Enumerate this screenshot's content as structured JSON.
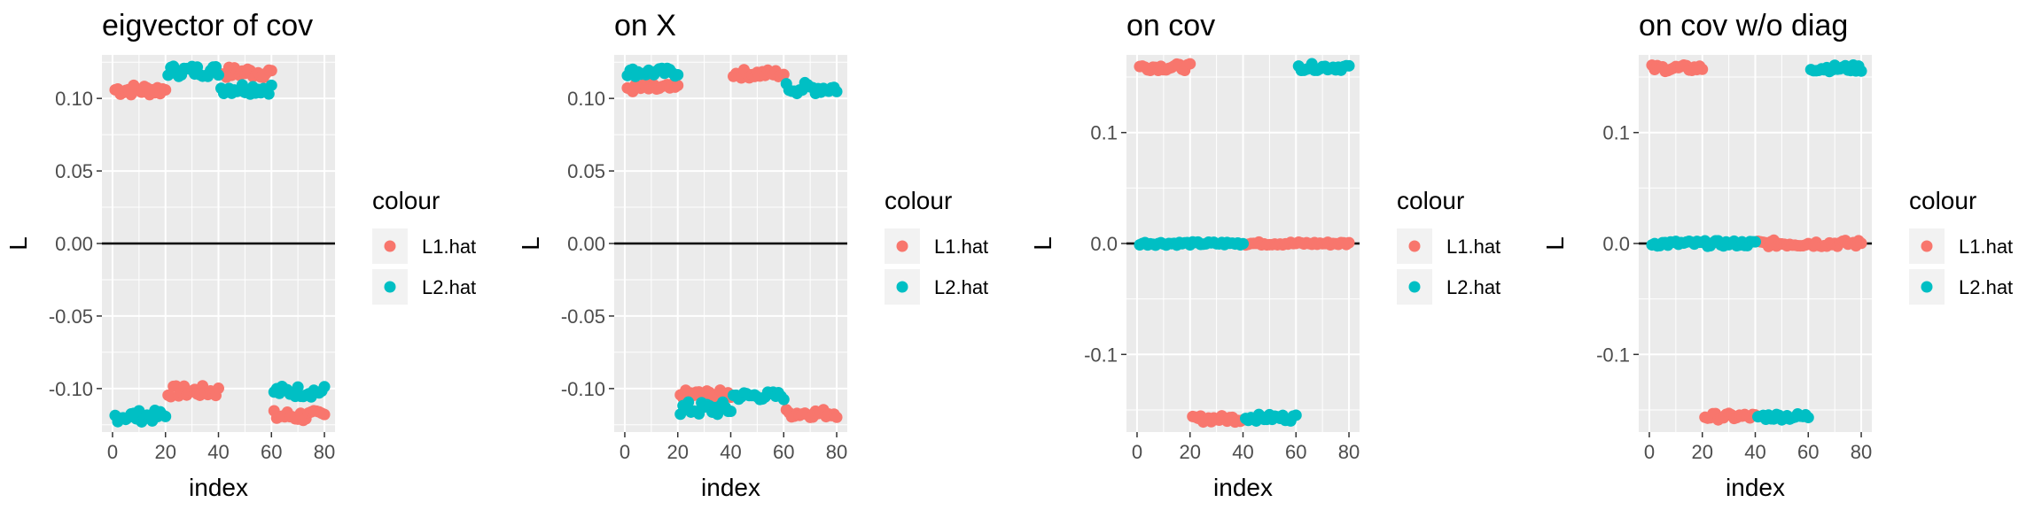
{
  "chart_data": [
    {
      "type": "scatter",
      "title": "eigvector of cov",
      "xlabel": "index",
      "ylabel": "L",
      "xlim": [
        0,
        80
      ],
      "ylim": [
        -0.13,
        0.13
      ],
      "x_ticks": [
        0,
        20,
        40,
        60,
        80
      ],
      "y_ticks": [
        0.1,
        0.05,
        0.0,
        -0.05,
        -0.1
      ],
      "y_tick_labels": [
        "0.10",
        "0.05",
        "0.00",
        "-0.05",
        "-0.10"
      ],
      "hline": 0,
      "legend": {
        "title": "colour",
        "position": "right",
        "items": [
          "L1.hat",
          "L2.hat"
        ]
      },
      "series": [
        {
          "name": "L1.hat",
          "color": "#F8766D",
          "groups": [
            {
              "x_from": 1,
              "x_to": 20,
              "y": 0.106,
              "jitter": 0.004
            },
            {
              "x_from": 21,
              "x_to": 40,
              "y": -0.102,
              "jitter": 0.004
            },
            {
              "x_from": 41,
              "x_to": 60,
              "y": 0.118,
              "jitter": 0.004
            },
            {
              "x_from": 61,
              "x_to": 80,
              "y": -0.119,
              "jitter": 0.004
            }
          ]
        },
        {
          "name": "L2.hat",
          "color": "#00BFC4",
          "groups": [
            {
              "x_from": 1,
              "x_to": 20,
              "y": -0.119,
              "jitter": 0.004
            },
            {
              "x_from": 21,
              "x_to": 40,
              "y": 0.119,
              "jitter": 0.004
            },
            {
              "x_from": 41,
              "x_to": 60,
              "y": 0.107,
              "jitter": 0.004
            },
            {
              "x_from": 61,
              "x_to": 80,
              "y": -0.102,
              "jitter": 0.004
            }
          ]
        }
      ]
    },
    {
      "type": "scatter",
      "title": "on X",
      "xlabel": "index",
      "ylabel": "L",
      "xlim": [
        0,
        80
      ],
      "ylim": [
        -0.13,
        0.13
      ],
      "x_ticks": [
        0,
        20,
        40,
        60,
        80
      ],
      "y_ticks": [
        0.1,
        0.05,
        0.0,
        -0.05,
        -0.1
      ],
      "y_tick_labels": [
        "0.10",
        "0.05",
        "0.00",
        "-0.05",
        "-0.10"
      ],
      "hline": 0,
      "legend": {
        "title": "colour",
        "position": "right",
        "items": [
          "L1.hat",
          "L2.hat"
        ]
      },
      "series": [
        {
          "name": "L1.hat",
          "color": "#F8766D",
          "groups": [
            {
              "x_from": 1,
              "x_to": 20,
              "y": 0.107,
              "jitter": 0.003
            },
            {
              "x_from": 21,
              "x_to": 40,
              "y": -0.104,
              "jitter": 0.003
            },
            {
              "x_from": 41,
              "x_to": 60,
              "y": 0.117,
              "jitter": 0.003
            },
            {
              "x_from": 61,
              "x_to": 80,
              "y": -0.117,
              "jitter": 0.003
            }
          ]
        },
        {
          "name": "L2.hat",
          "color": "#00BFC4",
          "groups": [
            {
              "x_from": 1,
              "x_to": 20,
              "y": 0.118,
              "jitter": 0.003
            },
            {
              "x_from": 21,
              "x_to": 40,
              "y": -0.114,
              "jitter": 0.005
            },
            {
              "x_from": 41,
              "x_to": 60,
              "y": -0.105,
              "jitter": 0.003
            },
            {
              "x_from": 61,
              "x_to": 80,
              "y": 0.107,
              "jitter": 0.004
            }
          ]
        }
      ]
    },
    {
      "type": "scatter",
      "title": "on cov",
      "xlabel": "index",
      "ylabel": "L",
      "xlim": [
        0,
        80
      ],
      "ylim": [
        -0.17,
        0.17
      ],
      "x_ticks": [
        0,
        20,
        40,
        60,
        80
      ],
      "y_ticks": [
        0.1,
        0.0,
        -0.1
      ],
      "y_tick_labels": [
        "0.1",
        "0.0",
        "-0.1"
      ],
      "hline": 0,
      "legend": {
        "title": "colour",
        "position": "right",
        "items": [
          "L1.hat",
          "L2.hat"
        ]
      },
      "series": [
        {
          "name": "L1.hat",
          "color": "#F8766D",
          "groups": [
            {
              "x_from": 1,
              "x_to": 20,
              "y": 0.159,
              "jitter": 0.003
            },
            {
              "x_from": 21,
              "x_to": 40,
              "y": -0.158,
              "jitter": 0.003
            },
            {
              "x_from": 41,
              "x_to": 80,
              "y": 0.0,
              "jitter": 0.0015
            }
          ]
        },
        {
          "name": "L2.hat",
          "color": "#00BFC4",
          "groups": [
            {
              "x_from": 1,
              "x_to": 40,
              "y": 0.0,
              "jitter": 0.0015
            },
            {
              "x_from": 41,
              "x_to": 60,
              "y": -0.157,
              "jitter": 0.003
            },
            {
              "x_from": 61,
              "x_to": 80,
              "y": 0.159,
              "jitter": 0.003
            }
          ]
        }
      ]
    },
    {
      "type": "scatter",
      "title": "on cov w/o diag",
      "xlabel": "index",
      "ylabel": "L",
      "xlim": [
        0,
        80
      ],
      "ylim": [
        -0.17,
        0.17
      ],
      "x_ticks": [
        0,
        20,
        40,
        60,
        80
      ],
      "y_ticks": [
        0.1,
        0.0,
        -0.1
      ],
      "y_tick_labels": [
        "0.1",
        "0.0",
        "-0.1"
      ],
      "hline": 0,
      "legend": {
        "title": "colour",
        "position": "right",
        "items": [
          "L1.hat",
          "L2.hat"
        ]
      },
      "series": [
        {
          "name": "L1.hat",
          "color": "#F8766D",
          "groups": [
            {
              "x_from": 1,
              "x_to": 20,
              "y": 0.158,
              "jitter": 0.003
            },
            {
              "x_from": 21,
              "x_to": 40,
              "y": -0.156,
              "jitter": 0.003
            },
            {
              "x_from": 41,
              "x_to": 80,
              "y": 0.0,
              "jitter": 0.003
            }
          ]
        },
        {
          "name": "L2.hat",
          "color": "#00BFC4",
          "groups": [
            {
              "x_from": 1,
              "x_to": 40,
              "y": 0.0,
              "jitter": 0.0025
            },
            {
              "x_from": 41,
              "x_to": 60,
              "y": -0.156,
              "jitter": 0.003
            },
            {
              "x_from": 61,
              "x_to": 80,
              "y": 0.158,
              "jitter": 0.003
            }
          ]
        }
      ]
    }
  ]
}
